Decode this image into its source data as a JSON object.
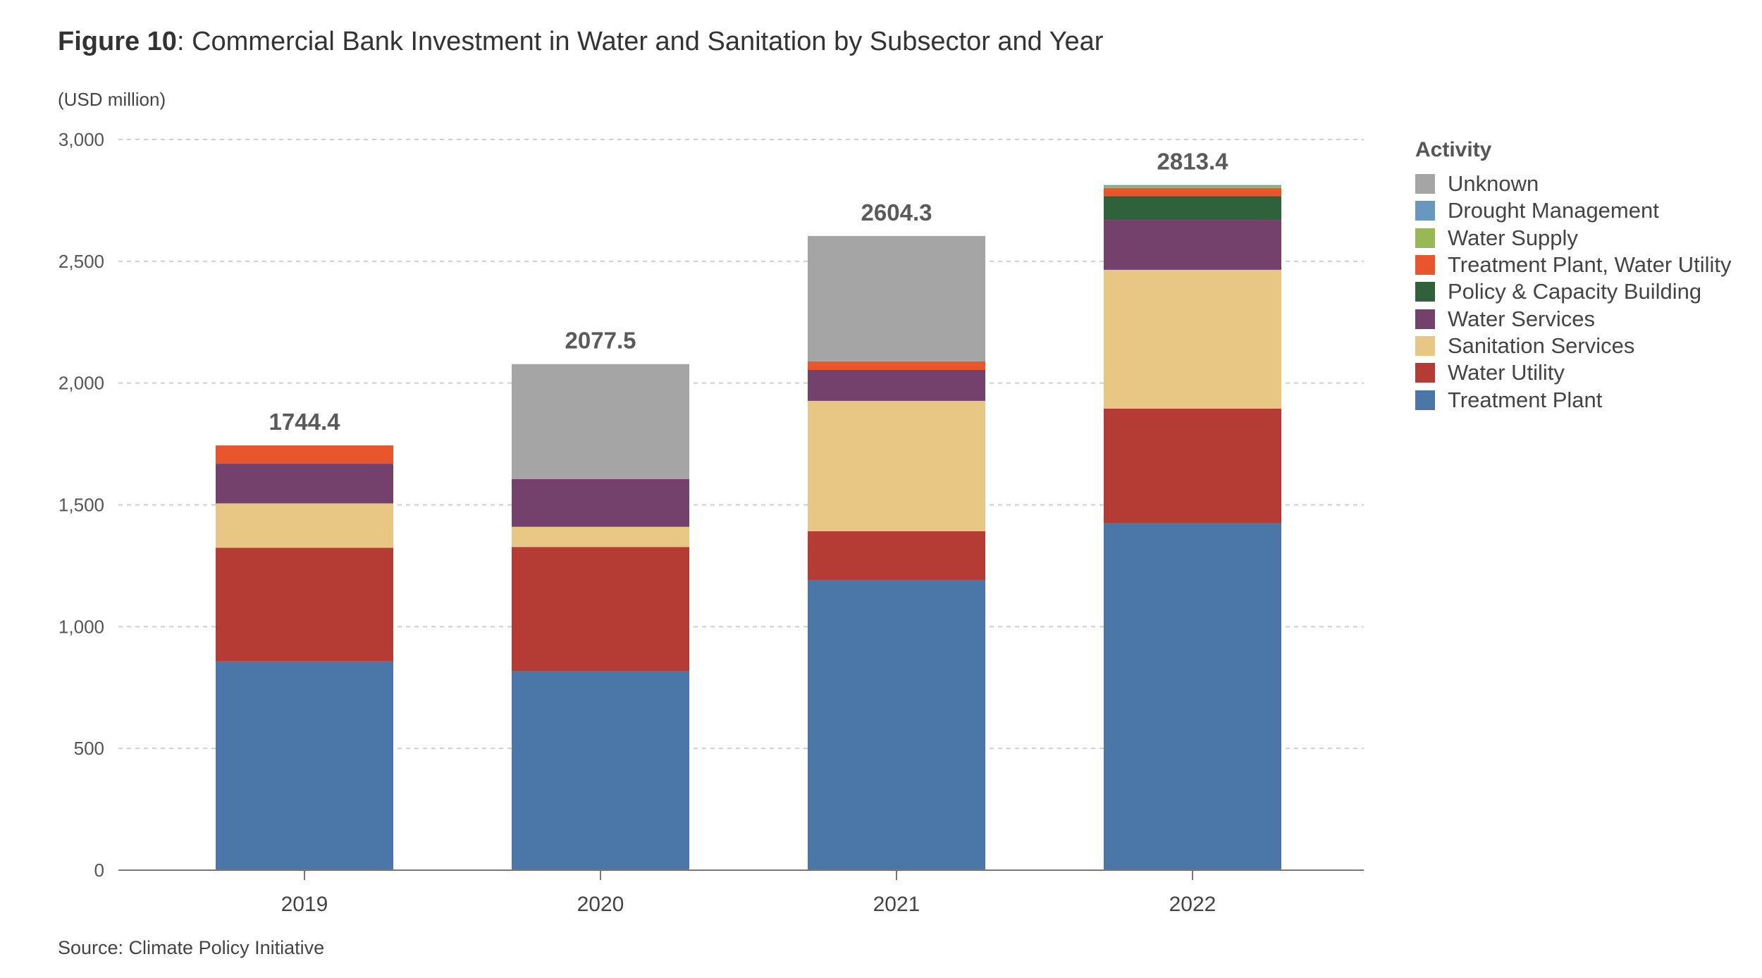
{
  "figure": {
    "number_label": "Figure 10",
    "title_rest": ": Commercial Bank Investment in Water and Sanitation by Subsector and Year",
    "unit_label": "(USD million)",
    "source": "Source: Climate Policy Initiative"
  },
  "chart_data": {
    "type": "bar",
    "stacked": true,
    "title": "Figure 10: Commercial Bank Investment in Water and Sanitation by Subsector and Year",
    "xlabel": "",
    "ylabel": "(USD million)",
    "ylim": [
      0,
      3000
    ],
    "yticks": [
      0,
      500,
      1000,
      1500,
      2000,
      2500,
      3000
    ],
    "ytick_labels": [
      "0",
      "500",
      "1,000",
      "1,500",
      "2,000",
      "2,500",
      "3,000"
    ],
    "grid": true,
    "legend_title": "Activity",
    "legend_position": "right",
    "categories": [
      "2019",
      "2020",
      "2021",
      "2022"
    ],
    "totals": [
      1744.4,
      2077.5,
      2604.3,
      2813.4
    ],
    "total_labels": [
      "1744.4",
      "2077.5",
      "2604.3",
      "2813.4"
    ],
    "series": [
      {
        "name": "Treatment Plant",
        "color": "#4a77a8",
        "values": [
          857,
          817,
          1192,
          1425
        ]
      },
      {
        "name": "Water Utility",
        "color": "#b43c34",
        "values": [
          467,
          510,
          200,
          470
        ]
      },
      {
        "name": "Sanitation Services",
        "color": "#e8c684",
        "values": [
          182,
          83,
          535,
          570
        ]
      },
      {
        "name": "Water Services",
        "color": "#73416b",
        "values": [
          163,
          196,
          127,
          205
        ]
      },
      {
        "name": "Policy & Capacity Building",
        "color": "#2f613a",
        "values": [
          0,
          0,
          0,
          97
        ]
      },
      {
        "name": "Treatment Plant, Water Utility",
        "color": "#e9562d",
        "values": [
          75,
          0,
          35,
          34
        ]
      },
      {
        "name": "Water Supply",
        "color": "#98b856",
        "values": [
          0,
          0,
          0,
          7
        ]
      },
      {
        "name": "Drought Management",
        "color": "#6a97bf",
        "values": [
          0,
          0,
          0,
          5
        ]
      },
      {
        "name": "Unknown",
        "color": "#a6a5a5",
        "values": [
          0,
          472,
          515,
          0
        ]
      }
    ]
  }
}
